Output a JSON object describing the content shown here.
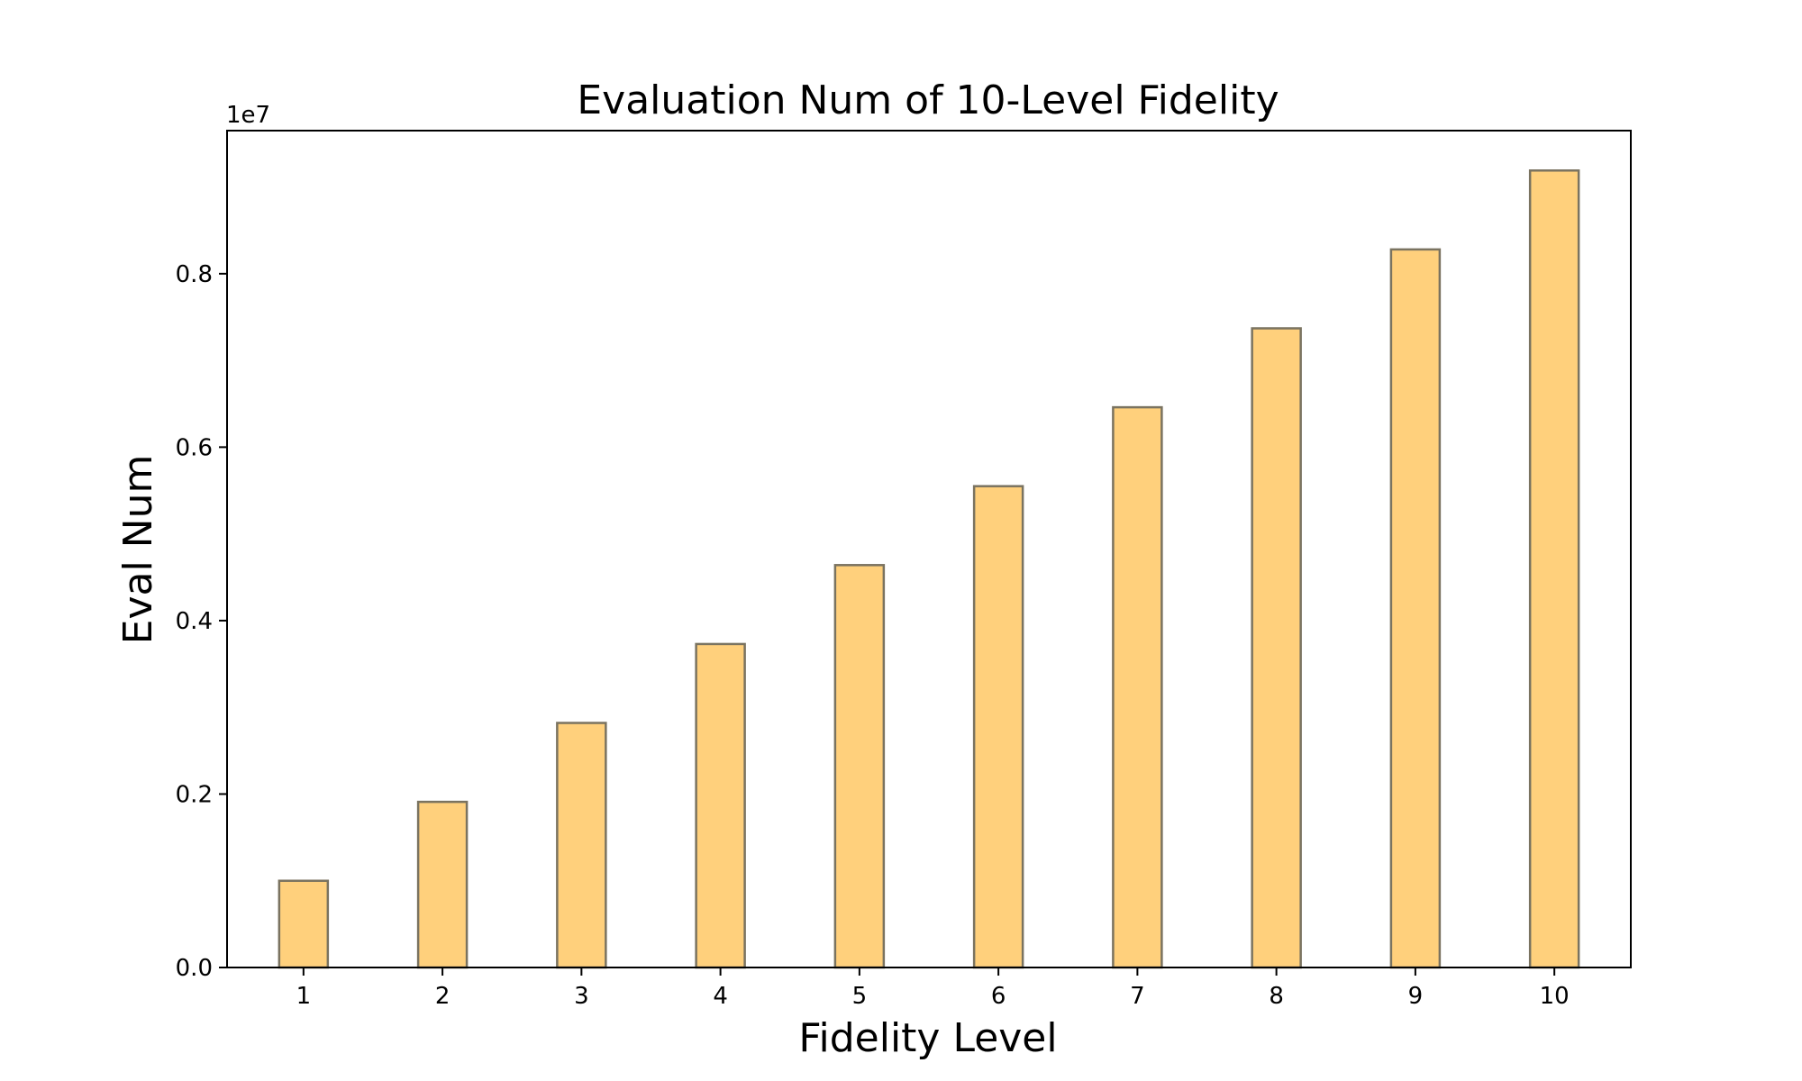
{
  "chart_data": {
    "type": "bar",
    "title": "Evaluation Num of 10-Level Fidelity",
    "xlabel": "Fidelity Level",
    "ylabel": "Eval Num",
    "y_offset_label": "1e7",
    "categories": [
      "1",
      "2",
      "3",
      "4",
      "5",
      "6",
      "7",
      "8",
      "9",
      "10"
    ],
    "values": [
      1000000,
      1910000,
      2820000,
      3730000,
      4640000,
      5550000,
      6460000,
      7370000,
      8280000,
      9190000
    ],
    "ylim": [
      0,
      9650000
    ],
    "yticks": [
      0,
      2000000,
      4000000,
      6000000,
      8000000
    ],
    "ytick_labels": [
      "0.0",
      "0.2",
      "0.4",
      "0.6",
      "0.8"
    ],
    "bar_color": "#ffd07c",
    "bar_edge_color": "#7a7360",
    "grid": false,
    "legend": "none"
  }
}
